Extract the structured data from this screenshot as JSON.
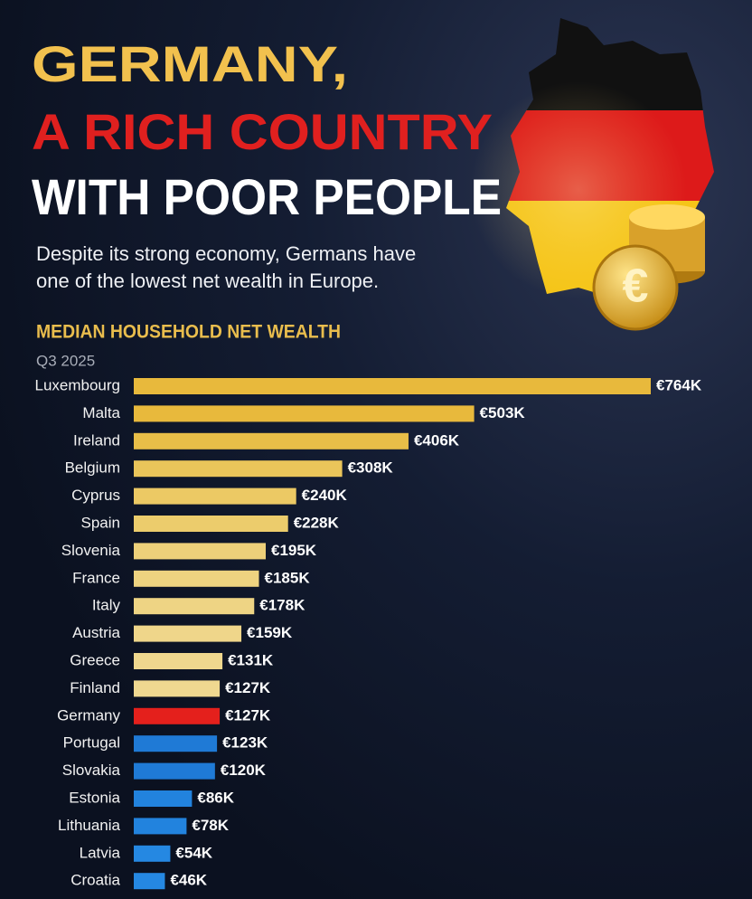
{
  "chart_data": {
    "type": "bar",
    "orientation": "horizontal",
    "title": [
      "GERMANY,",
      "A RICH COUNTRY",
      "WITH POOR PEOPLE"
    ],
    "title_colors": [
      "#f2c14e",
      "#e0201f",
      "#ffffff"
    ],
    "subtitle": [
      "Despite its strong economy, Germans have",
      "one of the lowest net wealth in Europe."
    ],
    "chart_title": "MEDIAN HOUSEHOLD NET WEALTH",
    "period": "Q3 2025",
    "categories": [
      "Luxembourg",
      "Malta",
      "Ireland",
      "Belgium",
      "Cyprus",
      "Spain",
      "Slovenia",
      "France",
      "Italy",
      "Austria",
      "Greece",
      "Finland",
      "Germany",
      "Portugal",
      "Slovakia",
      "Estonia",
      "Lithuania",
      "Latvia",
      "Croatia"
    ],
    "values": [
      764,
      503,
      406,
      308,
      240,
      228,
      195,
      185,
      178,
      159,
      131,
      127,
      127,
      123,
      120,
      86,
      78,
      54,
      46
    ],
    "value_labels": [
      "€764K",
      "€503K",
      "€406K",
      "€308K",
      "€240K",
      "€228K",
      "€195K",
      "€185K",
      "€178K",
      "€159K",
      "€131K",
      "€127K",
      "€127K",
      "€123K",
      "€120K",
      "€86K",
      "€78K",
      "€54K",
      "€46K"
    ],
    "colors": [
      "#e8b93c",
      "#e8b93c",
      "#e8be48",
      "#eac55a",
      "#ecc964",
      "#eccc6c",
      "#edd07a",
      "#eed380",
      "#eed484",
      "#efd68a",
      "#efd78e",
      "#efd890",
      "#e4201c",
      "#1f7ad6",
      "#1f7ad6",
      "#2283de",
      "#2283de",
      "#2588e2",
      "#2588e2"
    ]
  }
}
